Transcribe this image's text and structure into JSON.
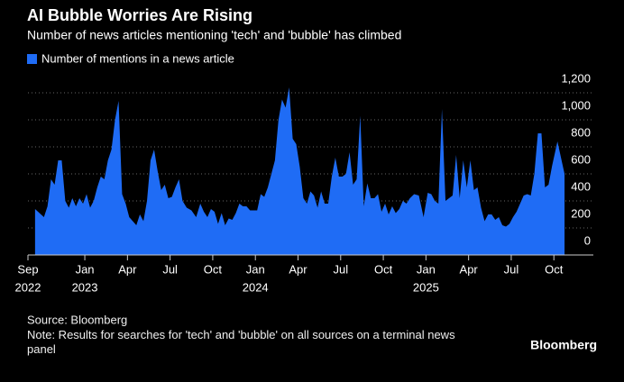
{
  "chart_data": {
    "type": "area",
    "title": "AI Bubble Worries Are Rising",
    "subtitle": "Number of news articles mentioning 'tech' and 'bubble' has climbed",
    "x": [
      "2022-09",
      "2022-10",
      "2022-10",
      "2022-10",
      "2022-10",
      "2022-11",
      "2022-11",
      "2022-11",
      "2022-11",
      "2022-12",
      "2022-12",
      "2022-12",
      "2022-12",
      "2023-01",
      "2023-01",
      "2023-01",
      "2023-01",
      "2023-02",
      "2023-02",
      "2023-02",
      "2023-02",
      "2023-03",
      "2023-03",
      "2023-03",
      "2023-03",
      "2023-04",
      "2023-04",
      "2023-04",
      "2023-04",
      "2023-05",
      "2023-05",
      "2023-05",
      "2023-05",
      "2023-06",
      "2023-06",
      "2023-06",
      "2023-06",
      "2023-07",
      "2023-07",
      "2023-07",
      "2023-07",
      "2023-08",
      "2023-08",
      "2023-08",
      "2023-09",
      "2023-09",
      "2023-09",
      "2023-09",
      "2023-10",
      "2023-10",
      "2023-10",
      "2023-10",
      "2023-11",
      "2023-11",
      "2023-11",
      "2023-11",
      "2023-12",
      "2023-12",
      "2023-12",
      "2023-12",
      "2024-01",
      "2024-01",
      "2024-01",
      "2024-01",
      "2024-02",
      "2024-02",
      "2024-02",
      "2024-02",
      "2024-03",
      "2024-03",
      "2024-03",
      "2024-03",
      "2024-04",
      "2024-04",
      "2024-04",
      "2024-04",
      "2024-05",
      "2024-05",
      "2024-05",
      "2024-05",
      "2024-06",
      "2024-06",
      "2024-06",
      "2024-06",
      "2024-07",
      "2024-07",
      "2024-07",
      "2024-07",
      "2024-08",
      "2024-08",
      "2024-08",
      "2024-08",
      "2024-09",
      "2024-09",
      "2024-09",
      "2024-09",
      "2024-10",
      "2024-10",
      "2024-10",
      "2024-10",
      "2024-11",
      "2024-11",
      "2024-11",
      "2024-11",
      "2024-12",
      "2024-12",
      "2024-12",
      "2025-01",
      "2025-01",
      "2025-01",
      "2025-01",
      "2025-02",
      "2025-02",
      "2025-02",
      "2025-02",
      "2025-03",
      "2025-03",
      "2025-03",
      "2025-03",
      "2025-04",
      "2025-04",
      "2025-04",
      "2025-04",
      "2025-05",
      "2025-05",
      "2025-05",
      "2025-05",
      "2025-06",
      "2025-06",
      "2025-06",
      "2025-06",
      "2025-07",
      "2025-07",
      "2025-07",
      "2025-07",
      "2025-08",
      "2025-08",
      "2025-08",
      "2025-08",
      "2025-09",
      "2025-09",
      "2025-09",
      "2025-09",
      "2025-10",
      "2025-10"
    ],
    "series": [
      {
        "name": "Number of mentions in a news article",
        "color": "#1f6cf5",
        "values": [
          340,
          280,
          360,
          560,
          520,
          700,
          700,
          400,
          350,
          420,
          360,
          420,
          380,
          450,
          350,
          400,
          500,
          580,
          560,
          700,
          780,
          1000,
          1140,
          450,
          380,
          280,
          250,
          220,
          300,
          250,
          400,
          700,
          780,
          620,
          480,
          520,
          420,
          430,
          500,
          560,
          400,
          350,
          330,
          280,
          380,
          320,
          280,
          340,
          320,
          230,
          310,
          220,
          270,
          260,
          310,
          380,
          360,
          360,
          330,
          330,
          330,
          450,
          430,
          500,
          600,
          700,
          1000,
          1150,
          1090,
          1240,
          860,
          820,
          650,
          420,
          380,
          470,
          440,
          350,
          470,
          380,
          380,
          580,
          720,
          580,
          580,
          600,
          760,
          520,
          560,
          1030,
          360,
          530,
          420,
          420,
          450,
          320,
          380,
          300,
          360,
          310,
          340,
          400,
          380,
          420,
          450,
          440,
          280,
          460,
          450,
          400,
          380,
          1080,
          400,
          420,
          440,
          740,
          420,
          700,
          500,
          700,
          480,
          500,
          350,
          250,
          300,
          300,
          260,
          280,
          220,
          210,
          230,
          280,
          320,
          380,
          440,
          450,
          440,
          600,
          900,
          900,
          500,
          520,
          660,
          840,
          600
        ]
      }
    ],
    "xlim": [
      "2022-09",
      "2025-11"
    ],
    "xticks": [
      {
        "value": "2022-09",
        "label": "Sep"
      },
      {
        "value": "2023-01",
        "label": "Jan"
      },
      {
        "value": "2023-04",
        "label": "Apr"
      },
      {
        "value": "2023-07",
        "label": "Jul"
      },
      {
        "value": "2023-10",
        "label": "Oct"
      },
      {
        "value": "2024-01",
        "label": "Jan"
      },
      {
        "value": "2024-04",
        "label": "Apr"
      },
      {
        "value": "2024-07",
        "label": "Jul"
      },
      {
        "value": "2024-10",
        "label": "Oct"
      },
      {
        "value": "2025-01",
        "label": "Jan"
      },
      {
        "value": "2025-04",
        "label": "Apr"
      },
      {
        "value": "2025-07",
        "label": "Jul"
      },
      {
        "value": "2025-10",
        "label": "Oct"
      }
    ],
    "xtick_years": [
      {
        "value": "2022-09",
        "label": "2022"
      },
      {
        "value": "2023-01",
        "label": "2023"
      },
      {
        "value": "2024-01",
        "label": "2024"
      },
      {
        "value": "2025-01",
        "label": "2025"
      }
    ],
    "ylim": [
      0,
      1200
    ],
    "yticks": [
      0,
      200,
      400,
      600,
      800,
      {
        "value": 1000,
        "label": "1,000"
      },
      {
        "value": 1200,
        "label": "1,200"
      }
    ],
    "grid": true,
    "source": "Source: Bloomberg",
    "note": "Note: Results for searches for 'tech' and 'bubble' on all sources on a terminal news panel",
    "brand": "Bloomberg"
  }
}
